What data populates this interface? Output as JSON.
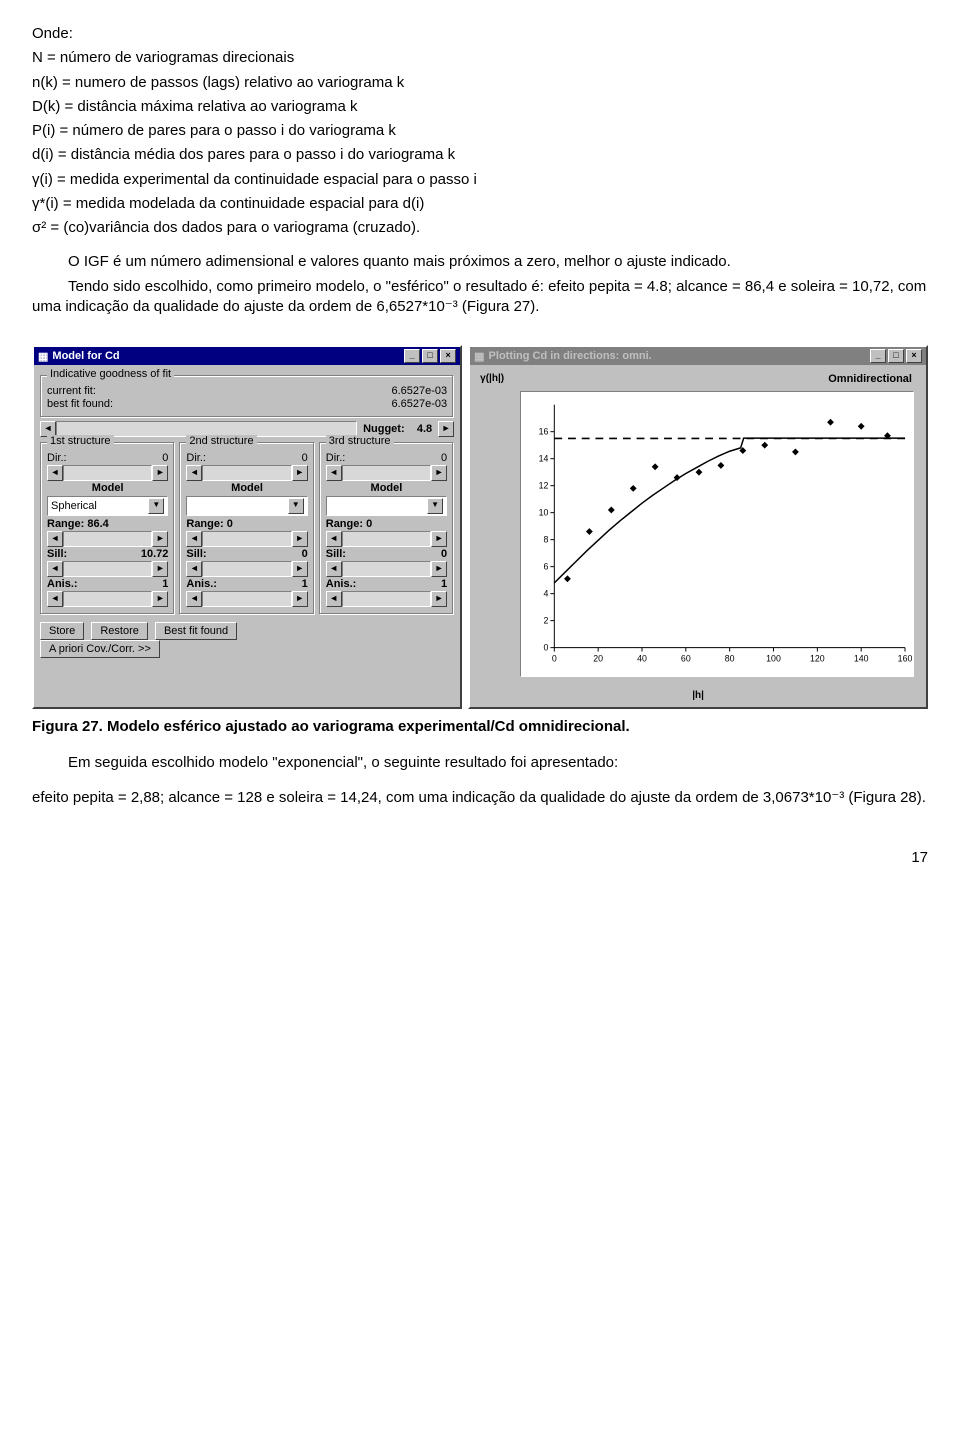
{
  "text": {
    "onde": "Onde:",
    "defs": [
      "N = número de variogramas direcionais",
      "n(k) = numero de passos (lags) relativo ao variograma k",
      "D(k) = distância máxima relativa ao variograma k",
      "P(i) = número de pares para o passo i do variograma k",
      "d(i) = distância média dos pares para o passo i do variograma k",
      "γ(i) = medida experimental da continuidade espacial para o passo i",
      "γ*(i) = medida modelada da continuidade espacial para d(i)",
      "σ² = (co)variância dos dados para o variograma (cruzado)."
    ],
    "p1": "O IGF é um número adimensional e valores quanto mais próximos a zero, melhor o ajuste indicado.",
    "p2": "Tendo sido escolhido, como primeiro modelo, o \"esférico\" o resultado é: efeito pepita = 4.8; alcance = 86,4 e soleira = 10,72, com uma indicação da qualidade do ajuste da ordem de 6,6527*10⁻³ (Figura 27).",
    "caption": "Figura  27. Modelo esférico ajustado ao variograma experimental/Cd omnidirecional.",
    "p3": "Em seguida escolhido modelo  \"exponencial\", o seguinte resultado foi apresentado:",
    "p4": "efeito pepita = 2,88; alcance = 128 e soleira = 14,24, com uma indicação da qualidade do ajuste da ordem de 3,0673*10⁻³ (Figura 28).",
    "pagenum": "17"
  },
  "model_window": {
    "title": "Model for Cd",
    "goodness_label": "Indicative goodness of fit",
    "current_fit_label": "current fit:",
    "current_fit_value": "6.6527e-03",
    "best_fit_label": "best fit found:",
    "best_fit_value": "6.6527e-03",
    "nugget_label": "Nugget:",
    "nugget_value": "4.8",
    "structures": [
      {
        "legend": "1st structure",
        "dir_label": "Dir.:",
        "dir_value": "0",
        "model_label": "Model",
        "model_value": "Spherical",
        "range_label": "Range:",
        "range_value": "86.4",
        "sill_label": "Sill:",
        "sill_value": "10.72",
        "anis_label": "Anis.:",
        "anis_value": "1"
      },
      {
        "legend": "2nd structure",
        "dir_label": "Dir.:",
        "dir_value": "0",
        "model_label": "Model",
        "model_value": "",
        "range_label": "Range:",
        "range_value": "0",
        "sill_label": "Sill:",
        "sill_value": "0",
        "anis_label": "Anis.:",
        "anis_value": "1"
      },
      {
        "legend": "3rd structure",
        "dir_label": "Dir.:",
        "dir_value": "0",
        "model_label": "Model",
        "model_value": "",
        "range_label": "Range:",
        "range_value": "0",
        "sill_label": "Sill:",
        "sill_value": "0",
        "anis_label": "Anis.:",
        "anis_value": "1"
      }
    ],
    "buttons": {
      "store": "Store",
      "restore": "Restore",
      "best": "Best fit found",
      "apriori": "A priori Cov./Corr. >>"
    }
  },
  "plot_window": {
    "title": "Plotting Cd in directions: omni.",
    "ylabel": "γ(|h|)",
    "legend_text": "Omnidirectional",
    "xlabel": "|h|",
    "xlim": [
      0,
      160
    ],
    "ylim": [
      0,
      18
    ],
    "xticks": [
      0,
      20,
      40,
      60,
      80,
      100,
      120,
      140,
      160
    ],
    "yticks": [
      0,
      2,
      4,
      6,
      8,
      10,
      12,
      14,
      16
    ],
    "colors": {
      "bg": "#ffffff",
      "axis": "#000000",
      "points": "#000000",
      "line": "#000000"
    },
    "sill_line_y": 15.5,
    "curve": [
      [
        0,
        4.8
      ],
      [
        5,
        5.6
      ],
      [
        10,
        6.4
      ],
      [
        15,
        7.2
      ],
      [
        20,
        7.95
      ],
      [
        25,
        8.7
      ],
      [
        30,
        9.4
      ],
      [
        35,
        10.05
      ],
      [
        40,
        10.7
      ],
      [
        45,
        11.3
      ],
      [
        50,
        11.85
      ],
      [
        55,
        12.4
      ],
      [
        60,
        12.9
      ],
      [
        65,
        13.35
      ],
      [
        70,
        13.8
      ],
      [
        75,
        14.2
      ],
      [
        80,
        14.55
      ],
      [
        85,
        14.8
      ],
      [
        86.4,
        15.52
      ],
      [
        90,
        15.52
      ],
      [
        100,
        15.52
      ],
      [
        120,
        15.52
      ],
      [
        140,
        15.52
      ],
      [
        160,
        15.52
      ]
    ],
    "points": [
      [
        6,
        5.1
      ],
      [
        16,
        8.6
      ],
      [
        26,
        10.2
      ],
      [
        36,
        11.8
      ],
      [
        46,
        13.4
      ],
      [
        56,
        12.6
      ],
      [
        66,
        13.0
      ],
      [
        76,
        13.5
      ],
      [
        86,
        14.6
      ],
      [
        96,
        15.0
      ],
      [
        110,
        14.5
      ],
      [
        126,
        16.7
      ],
      [
        140,
        16.4
      ],
      [
        152,
        15.7
      ]
    ]
  }
}
